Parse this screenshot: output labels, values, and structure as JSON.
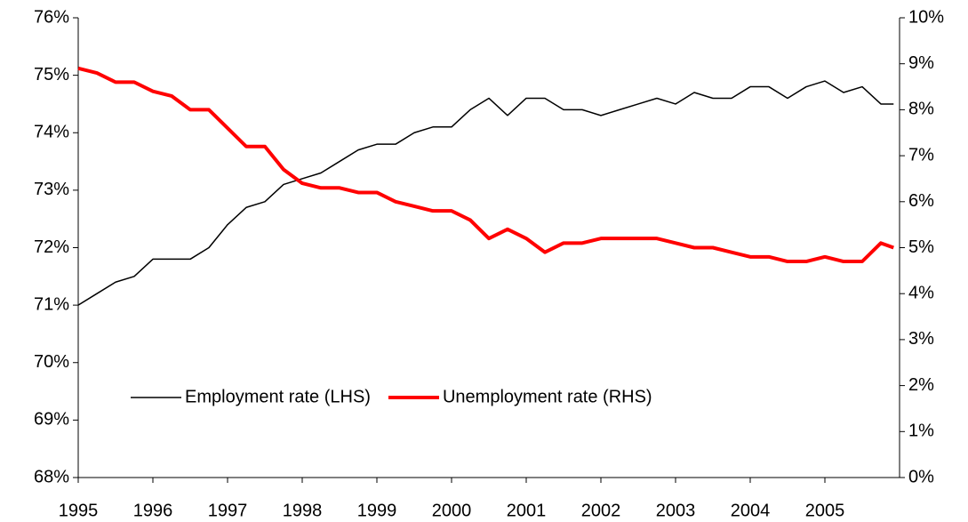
{
  "chart_data": {
    "type": "line",
    "x": [
      1995,
      1995.25,
      1995.5,
      1995.75,
      1996,
      1996.25,
      1996.5,
      1996.75,
      1997,
      1997.25,
      1997.5,
      1997.75,
      1998,
      1998.25,
      1998.5,
      1998.75,
      1999,
      1999.25,
      1999.5,
      1999.75,
      2000,
      2000.25,
      2000.5,
      2000.75,
      2001,
      2001.25,
      2001.5,
      2001.75,
      2002,
      2002.25,
      2002.5,
      2002.75,
      2003,
      2003.25,
      2003.5,
      2003.75,
      2004,
      2004.25,
      2004.5,
      2004.75,
      2005,
      2005.25,
      2005.5,
      2005.75,
      2005.92
    ],
    "series": [
      {
        "name": "Employment rate (LHS)",
        "color": "#000000",
        "axis": "y",
        "values": [
          71.0,
          71.2,
          71.4,
          71.5,
          71.8,
          71.8,
          71.8,
          72.0,
          72.4,
          72.7,
          72.8,
          73.1,
          73.2,
          73.3,
          73.5,
          73.7,
          73.8,
          73.8,
          74.0,
          74.1,
          74.1,
          74.4,
          74.6,
          74.3,
          74.6,
          74.6,
          74.4,
          74.4,
          74.3,
          74.4,
          74.5,
          74.6,
          74.5,
          74.7,
          74.6,
          74.6,
          74.8,
          74.8,
          74.6,
          74.8,
          74.9,
          74.7,
          74.8,
          74.5,
          74.5
        ]
      },
      {
        "name": "Unemployment rate (RHS)",
        "color": "#ff0000",
        "axis": "y2",
        "values": [
          8.9,
          8.8,
          8.6,
          8.6,
          8.4,
          8.3,
          8.0,
          8.0,
          7.6,
          7.2,
          7.2,
          6.7,
          6.4,
          6.3,
          6.3,
          6.2,
          6.2,
          6.0,
          5.9,
          5.8,
          5.8,
          5.6,
          5.2,
          5.4,
          5.2,
          4.9,
          5.1,
          5.1,
          5.2,
          5.2,
          5.2,
          5.2,
          5.1,
          5.0,
          5.0,
          4.9,
          4.8,
          4.8,
          4.7,
          4.7,
          4.8,
          4.7,
          4.7,
          5.1,
          5.0
        ]
      }
    ],
    "xlim": [
      1995,
      2006
    ],
    "xticks": [
      1995,
      1996,
      1997,
      1998,
      1999,
      2000,
      2001,
      2002,
      2003,
      2004,
      2005
    ],
    "ylim": [
      68,
      76
    ],
    "yticks": [
      {
        "value": 68,
        "label": "68%"
      },
      {
        "value": 69,
        "label": "69%"
      },
      {
        "value": 70,
        "label": "70%"
      },
      {
        "value": 71,
        "label": "71%"
      },
      {
        "value": 72,
        "label": "72%"
      },
      {
        "value": 73,
        "label": "73%"
      },
      {
        "value": 74,
        "label": "74%"
      },
      {
        "value": 75,
        "label": "75%"
      },
      {
        "value": 76,
        "label": "76%"
      }
    ],
    "y2lim": [
      0,
      10
    ],
    "y2ticks": [
      {
        "value": 0,
        "label": "0%"
      },
      {
        "value": 1,
        "label": "1%"
      },
      {
        "value": 2,
        "label": "2%"
      },
      {
        "value": 3,
        "label": "3%"
      },
      {
        "value": 4,
        "label": "4%"
      },
      {
        "value": 5,
        "label": "5%"
      },
      {
        "value": 6,
        "label": "6%"
      },
      {
        "value": 7,
        "label": "7%"
      },
      {
        "value": 8,
        "label": "8%"
      },
      {
        "value": 9,
        "label": "9%"
      },
      {
        "value": 10,
        "label": "10%"
      }
    ],
    "grid": false,
    "legend": "lower center"
  }
}
